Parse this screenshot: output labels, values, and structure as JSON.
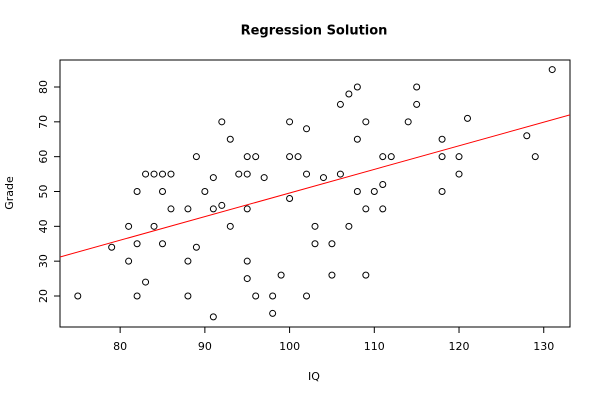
{
  "chart_data": {
    "type": "scatter",
    "title": "Regression Solution",
    "x_label": "IQ",
    "y_label": "Grade",
    "x": [
      75,
      79,
      81,
      81,
      82,
      82,
      82,
      83,
      83,
      84,
      84,
      85,
      85,
      85,
      86,
      86,
      88,
      88,
      88,
      89,
      89,
      90,
      91,
      91,
      91,
      92,
      92,
      93,
      93,
      94,
      95,
      95,
      95,
      95,
      95,
      96,
      96,
      97,
      98,
      98,
      99,
      100,
      100,
      100,
      101,
      102,
      102,
      102,
      103,
      103,
      104,
      105,
      105,
      106,
      106,
      107,
      107,
      108,
      108,
      108,
      109,
      109,
      109,
      110,
      111,
      111,
      111,
      112,
      114,
      115,
      115,
      118,
      118,
      118,
      120,
      120,
      121,
      128,
      129,
      131
    ],
    "values": [
      20,
      34,
      40,
      30,
      50,
      35,
      20,
      55,
      24,
      55,
      40,
      55,
      50,
      35,
      55,
      45,
      45,
      30,
      20,
      60,
      34,
      50,
      54,
      45,
      14,
      70,
      46,
      65,
      40,
      55,
      60,
      55,
      45,
      30,
      25,
      60,
      20,
      54,
      20,
      15,
      26,
      70,
      60,
      48,
      60,
      68,
      55,
      20,
      40,
      35,
      54,
      35,
      26,
      75,
      55,
      78,
      40,
      80,
      65,
      50,
      70,
      45,
      26,
      50,
      60,
      52,
      45,
      60,
      70,
      80,
      75,
      65,
      60,
      50,
      60,
      55,
      71,
      66,
      60,
      85
    ],
    "color": "#000000",
    "fit_line": {
      "type": "line",
      "x": [
        72.9,
        133.1
      ],
      "values": [
        31.2,
        72.0
      ],
      "color": "#ff0000"
    },
    "xlim": [
      72.9,
      133.1
    ],
    "ylim": [
      11.1,
      87.75
    ],
    "xticks": [
      80,
      90,
      100,
      110,
      120,
      130
    ],
    "yticks": [
      20,
      30,
      40,
      50,
      60,
      70,
      80
    ]
  }
}
